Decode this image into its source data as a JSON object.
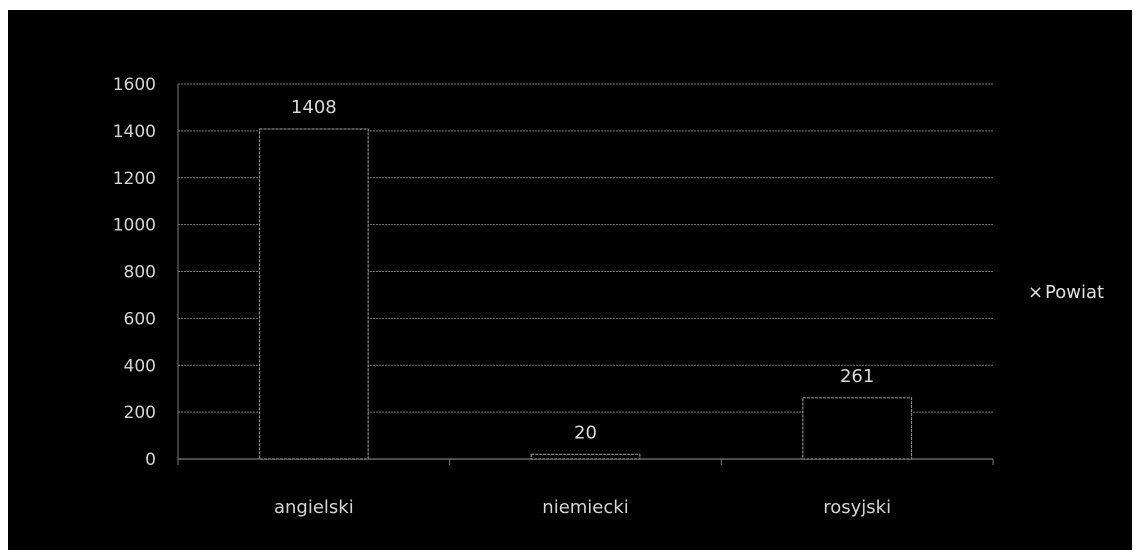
{
  "chart_data": {
    "type": "bar",
    "categories": [
      "angielski",
      "niemiecki",
      "rosyjski"
    ],
    "series": [
      {
        "name": "Powiat",
        "values": [
          1408,
          20,
          261
        ]
      }
    ],
    "ylim": [
      0,
      1600
    ],
    "yticks": [
      0,
      200,
      400,
      600,
      800,
      1000,
      1200,
      1400,
      1600
    ],
    "grid": true,
    "legend": "right",
    "colors": {
      "background": "#000000",
      "bar_fill": "#000000",
      "bar_edge": "#8a8a8a",
      "grid": "#7a7a7a",
      "text": "#d4d4d4"
    }
  },
  "legend": {
    "marker": "×",
    "label": "Powiat"
  }
}
